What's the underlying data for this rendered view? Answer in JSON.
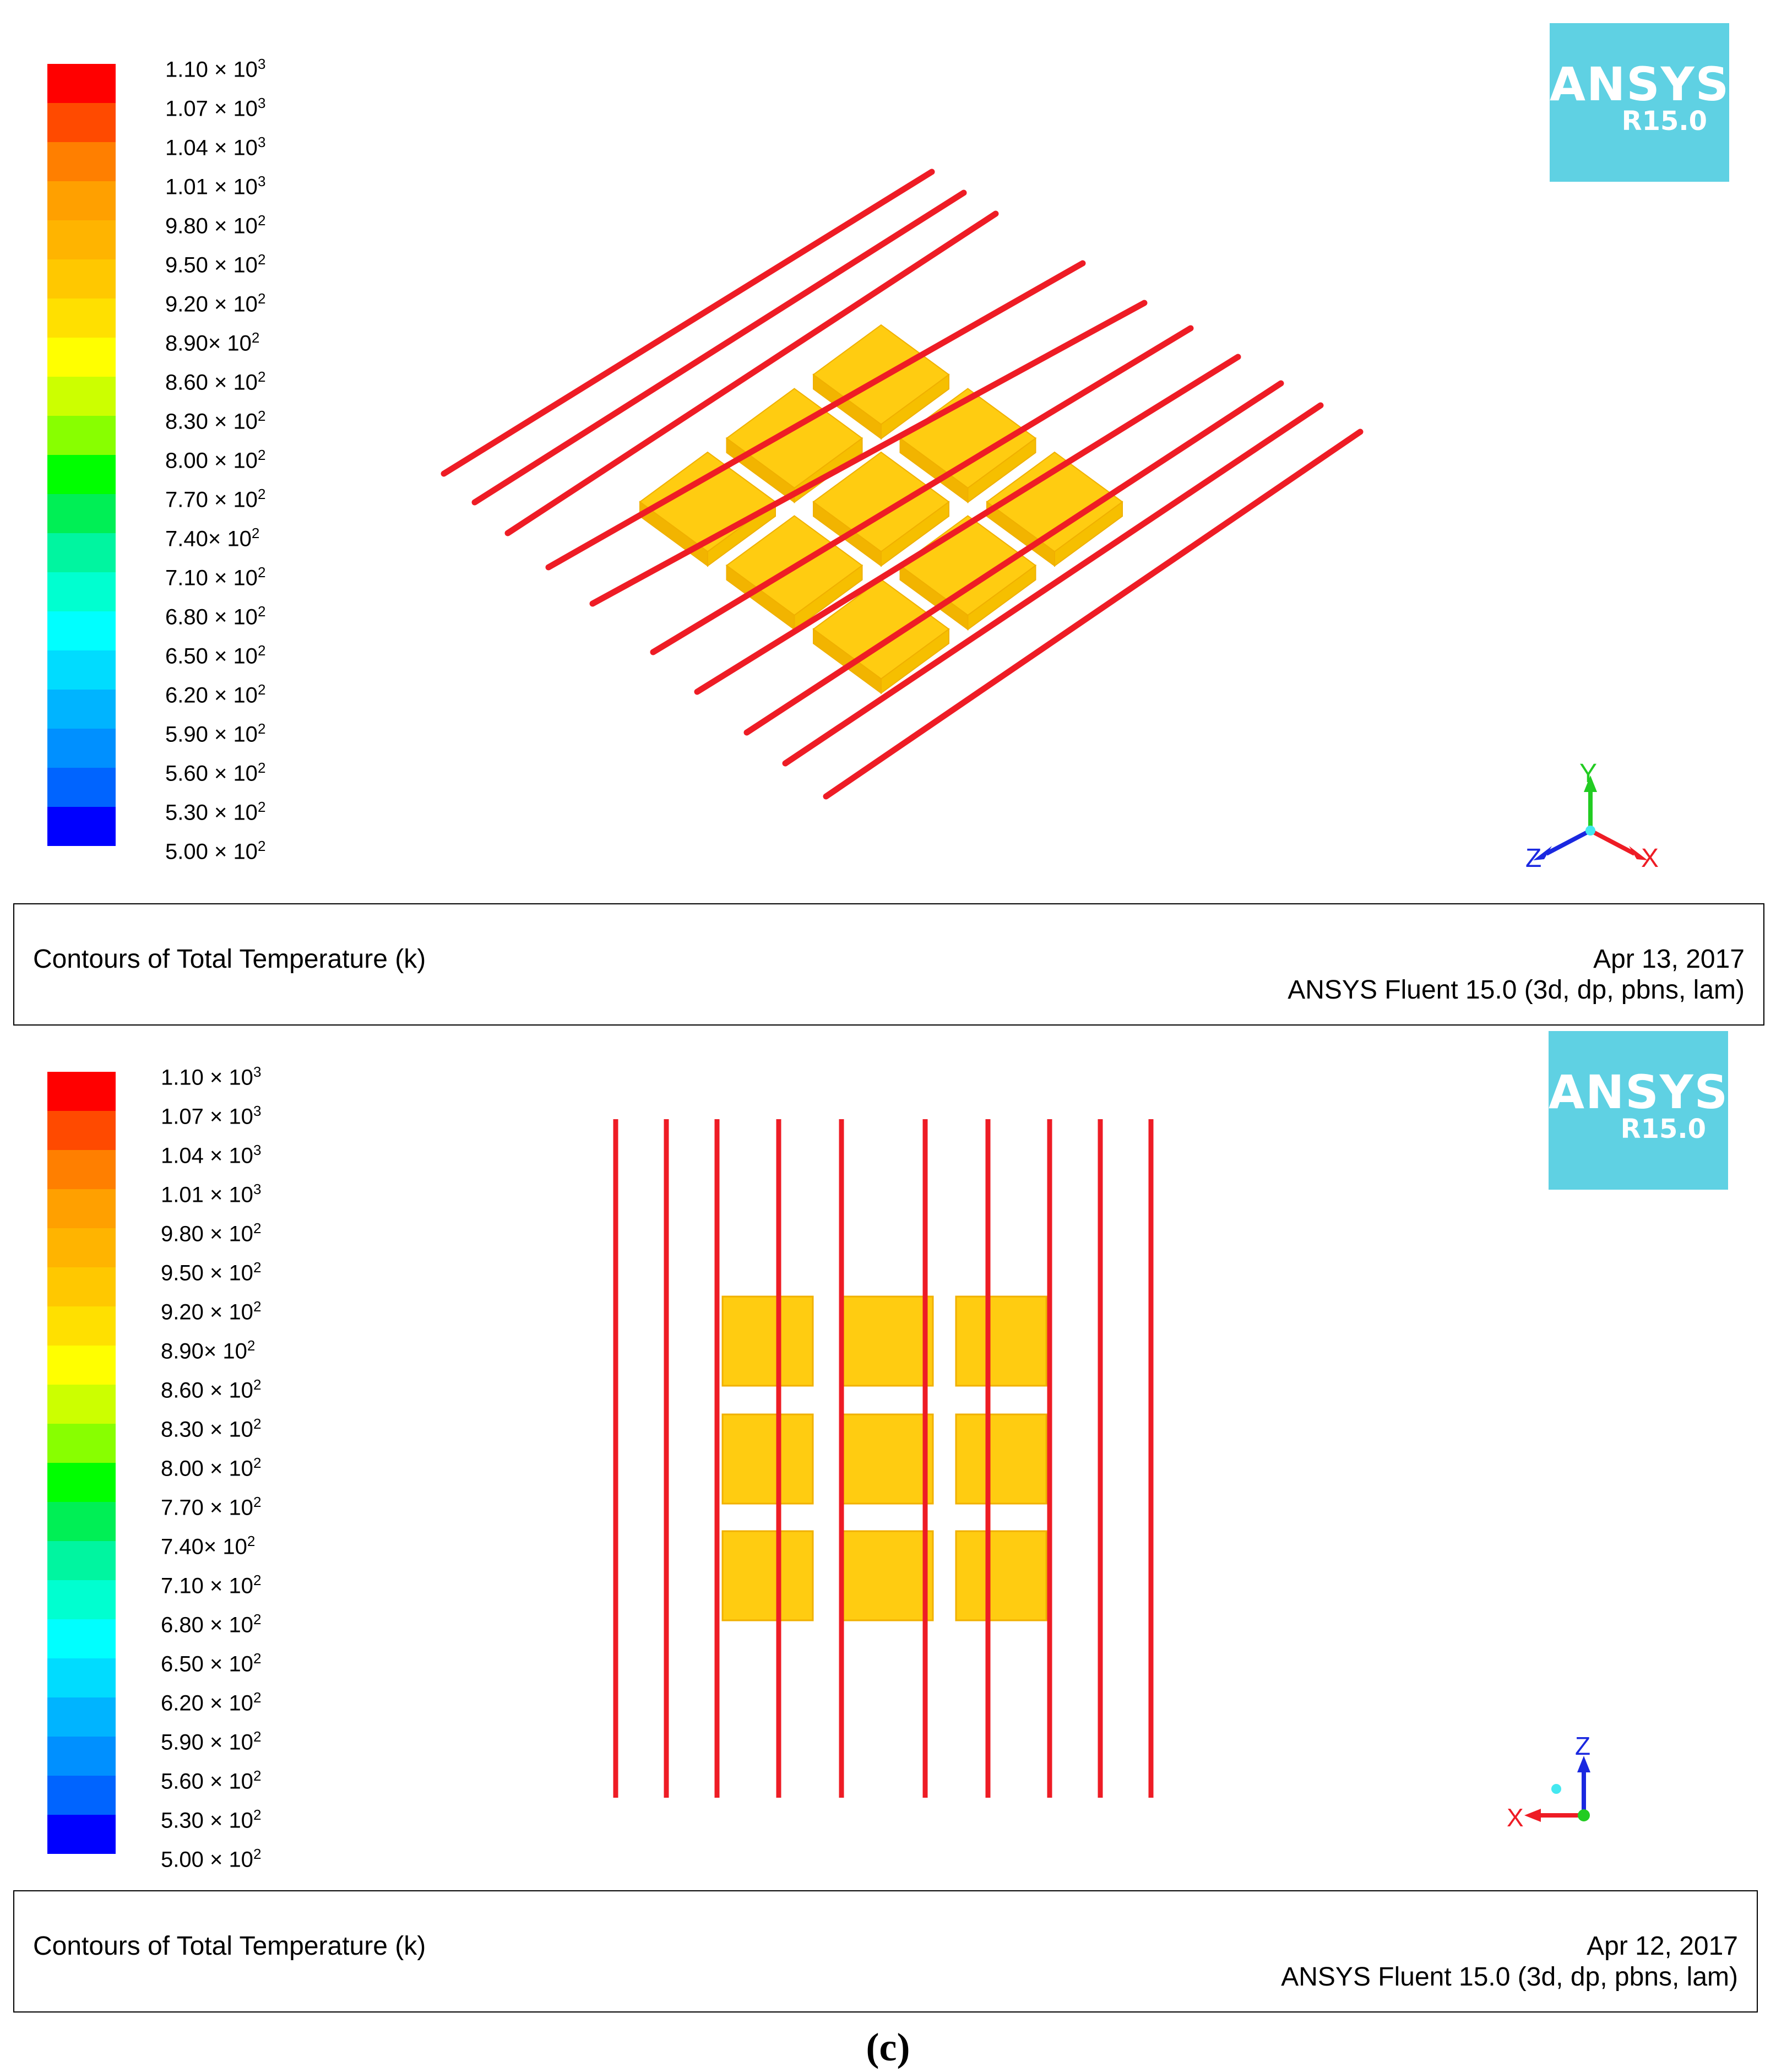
{
  "colormap": {
    "colors": [
      "#ff0000",
      "#ff4a00",
      "#ff7f00",
      "#ffa000",
      "#ffb400",
      "#ffc800",
      "#ffe000",
      "#ffff00",
      "#ccff00",
      "#88ff00",
      "#00ff00",
      "#00ef55",
      "#00f5a0",
      "#00ffd0",
      "#00ffff",
      "#00dcff",
      "#00b4ff",
      "#0090ff",
      "#0064ff",
      "#0000ff"
    ],
    "labels": [
      {
        "mantissa": "1.10 ×",
        "exp": "3"
      },
      {
        "mantissa": "1.07 ×",
        "exp": "3"
      },
      {
        "mantissa": "1.04 ×",
        "exp": "3"
      },
      {
        "mantissa": "1.01 ×",
        "exp": "3"
      },
      {
        "mantissa": "9.80 ×",
        "exp": "2"
      },
      {
        "mantissa": "9.50 ×",
        "exp": "2"
      },
      {
        "mantissa": "9.20 ×",
        "exp": "2"
      },
      {
        "mantissa": "8.90×",
        "exp": "2"
      },
      {
        "mantissa": "8.60 ×",
        "exp": "2"
      },
      {
        "mantissa": "8.30 ×",
        "exp": "2"
      },
      {
        "mantissa": "8.00 ×",
        "exp": "2"
      },
      {
        "mantissa": "7.70 ×",
        "exp": "2"
      },
      {
        "mantissa": "7.40×",
        "exp": "2"
      },
      {
        "mantissa": "7.10 ×",
        "exp": "2"
      },
      {
        "mantissa": "6.80 ×",
        "exp": "2"
      },
      {
        "mantissa": "6.50 ×",
        "exp": "2"
      },
      {
        "mantissa": "6.20 ×",
        "exp": "2"
      },
      {
        "mantissa": "5.90 ×",
        "exp": "2"
      },
      {
        "mantissa": "5.60 ×",
        "exp": "2"
      },
      {
        "mantissa": "5.30 ×",
        "exp": "2"
      },
      {
        "mantissa": "5.00 ×",
        "exp": "2"
      }
    ],
    "base": "10"
  },
  "logo": {
    "name": "ANSYS",
    "version": "R15.0",
    "color": "#5fd1e3"
  },
  "panels": [
    {
      "view": "isometric",
      "title": "Contours of Total Temperature (k)",
      "date": "Apr 13, 2017",
      "version": "ANSYS Fluent 15.0 (3d, dp, pbns, lam)",
      "triad": {
        "up": "Y",
        "right": "X",
        "left": "Z"
      }
    },
    {
      "view": "top",
      "title": "Contours of Total Temperature (k)",
      "date": "Apr 12, 2017",
      "version": "ANSYS Fluent 15.0 (3d, dp, pbns, lam)",
      "triad": {
        "up": "Z",
        "left": "X"
      }
    }
  ],
  "caption": "(c)",
  "colors": {
    "wire": "#ee1c25",
    "block": "#ffcc11",
    "block_edge": "#f0b000"
  }
}
